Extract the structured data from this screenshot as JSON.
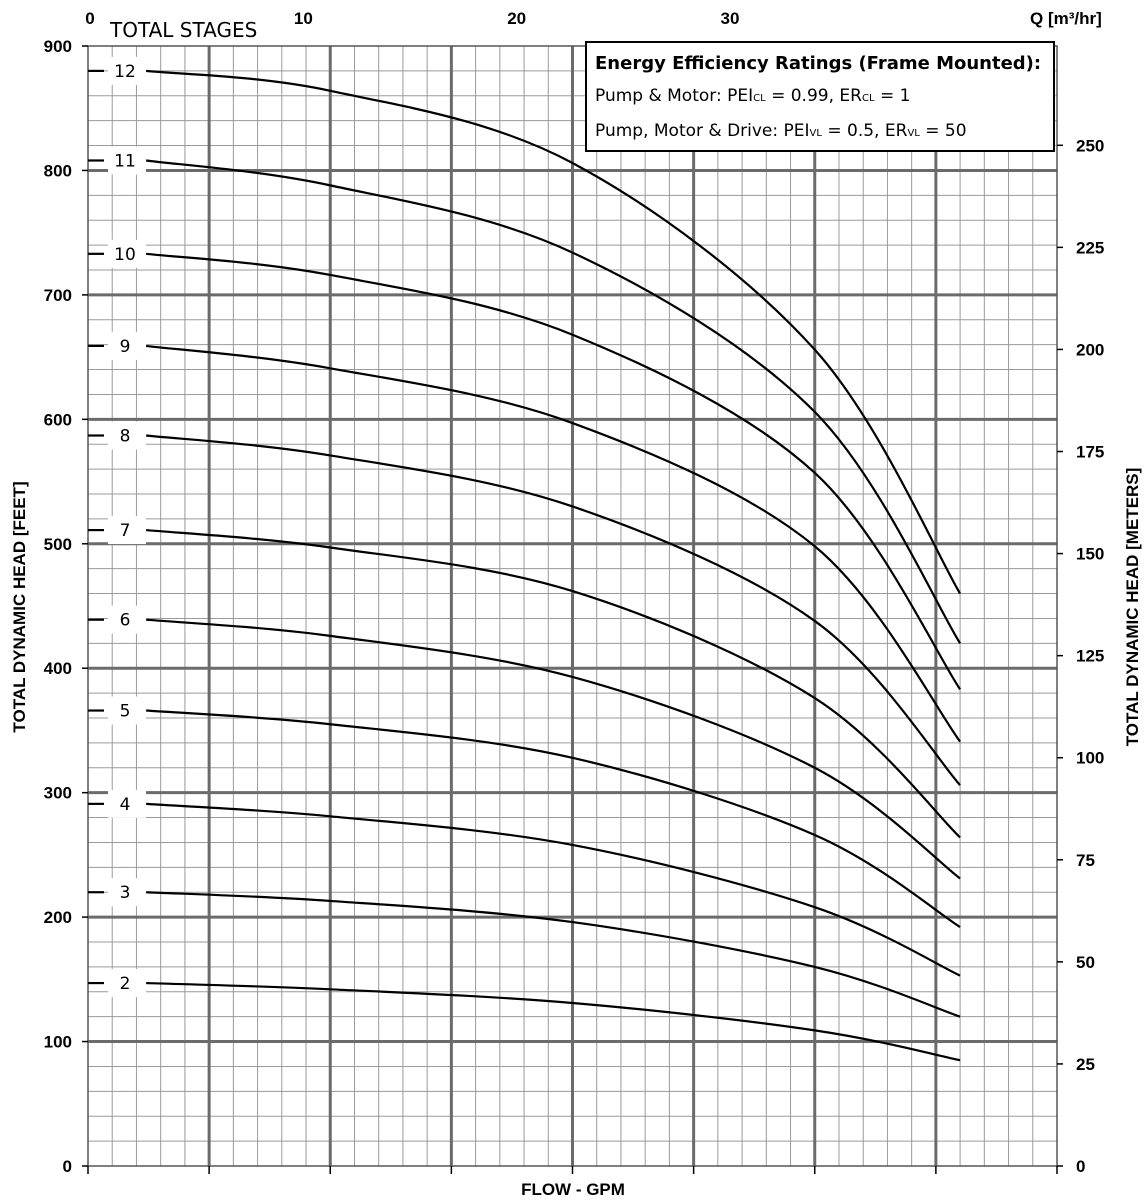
{
  "chart_data": {
    "type": "line",
    "xlabel": "FLOW - GPM",
    "ylabel": "TOTAL DYNAMIC HEAD [FEET]",
    "ylabel_right": "TOTAL DYNAMIC HEAD [METERS]",
    "xlabel_top": "Q [m³/hr]",
    "stages_label": "TOTAL STAGES",
    "xlim": [
      0,
      200
    ],
    "ylim": [
      0,
      900
    ],
    "y_ticks": [
      "0",
      "100",
      "200",
      "300",
      "400",
      "500",
      "600",
      "700",
      "800",
      "900"
    ],
    "y_right_ticks": [
      "0",
      "25",
      "50",
      "75",
      "100",
      "125",
      "150",
      "175",
      "200",
      "225",
      "250"
    ],
    "x_top_ticks": [
      "0",
      "10",
      "20",
      "30"
    ],
    "x_top_tick_values": [
      0,
      44.03,
      88.06,
      132.09
    ],
    "grid": true,
    "series": [
      {
        "name": "2",
        "x": [
          12,
          50,
          100,
          150,
          180
        ],
        "y": [
          147,
          142,
          131,
          109,
          85
        ]
      },
      {
        "name": "3",
        "x": [
          12,
          50,
          100,
          150,
          180
        ],
        "y": [
          220,
          213,
          196,
          160,
          120
        ]
      },
      {
        "name": "4",
        "x": [
          12,
          50,
          100,
          150,
          180
        ],
        "y": [
          291,
          281,
          258,
          208,
          153
        ]
      },
      {
        "name": "5",
        "x": [
          12,
          50,
          100,
          150,
          180
        ],
        "y": [
          366,
          355,
          328,
          266,
          192
        ]
      },
      {
        "name": "6",
        "x": [
          12,
          50,
          100,
          150,
          180
        ],
        "y": [
          439,
          426,
          393,
          320,
          231
        ]
      },
      {
        "name": "7",
        "x": [
          12,
          50,
          100,
          150,
          180
        ],
        "y": [
          511,
          497,
          462,
          376,
          264
        ]
      },
      {
        "name": "8",
        "x": [
          12,
          50,
          100,
          150,
          180
        ],
        "y": [
          587,
          571,
          530,
          438,
          306
        ]
      },
      {
        "name": "9",
        "x": [
          12,
          50,
          100,
          150,
          180
        ],
        "y": [
          659,
          641,
          597,
          498,
          341
        ]
      },
      {
        "name": "10",
        "x": [
          12,
          50,
          100,
          150,
          180
        ],
        "y": [
          733,
          716,
          668,
          557,
          383
        ]
      },
      {
        "name": "11",
        "x": [
          12,
          50,
          100,
          150,
          180
        ],
        "y": [
          808,
          788,
          734,
          606,
          420
        ]
      },
      {
        "name": "12",
        "x": [
          12,
          50,
          100,
          150,
          180
        ],
        "y": [
          880,
          864,
          806,
          656,
          460
        ]
      }
    ]
  },
  "legend": {
    "title": "Energy Efficiency Ratings (Frame Mounted):",
    "line1_label": "Pump & Motor:",
    "line1_pei": "PEI",
    "line1_pei_sub": "CL",
    "line1_pei_value": "= 0.99,",
    "line1_er": "ER",
    "line1_er_sub": "CL",
    "line1_er_value": "= 1",
    "line2_label": "Pump, Motor & Drive:",
    "line2_pei": "PEI",
    "line2_pei_sub": "VL",
    "line2_pei_value": "= 0.5,",
    "line2_er": "ER",
    "line2_er_sub": "VL",
    "line2_er_value": "= 50"
  }
}
